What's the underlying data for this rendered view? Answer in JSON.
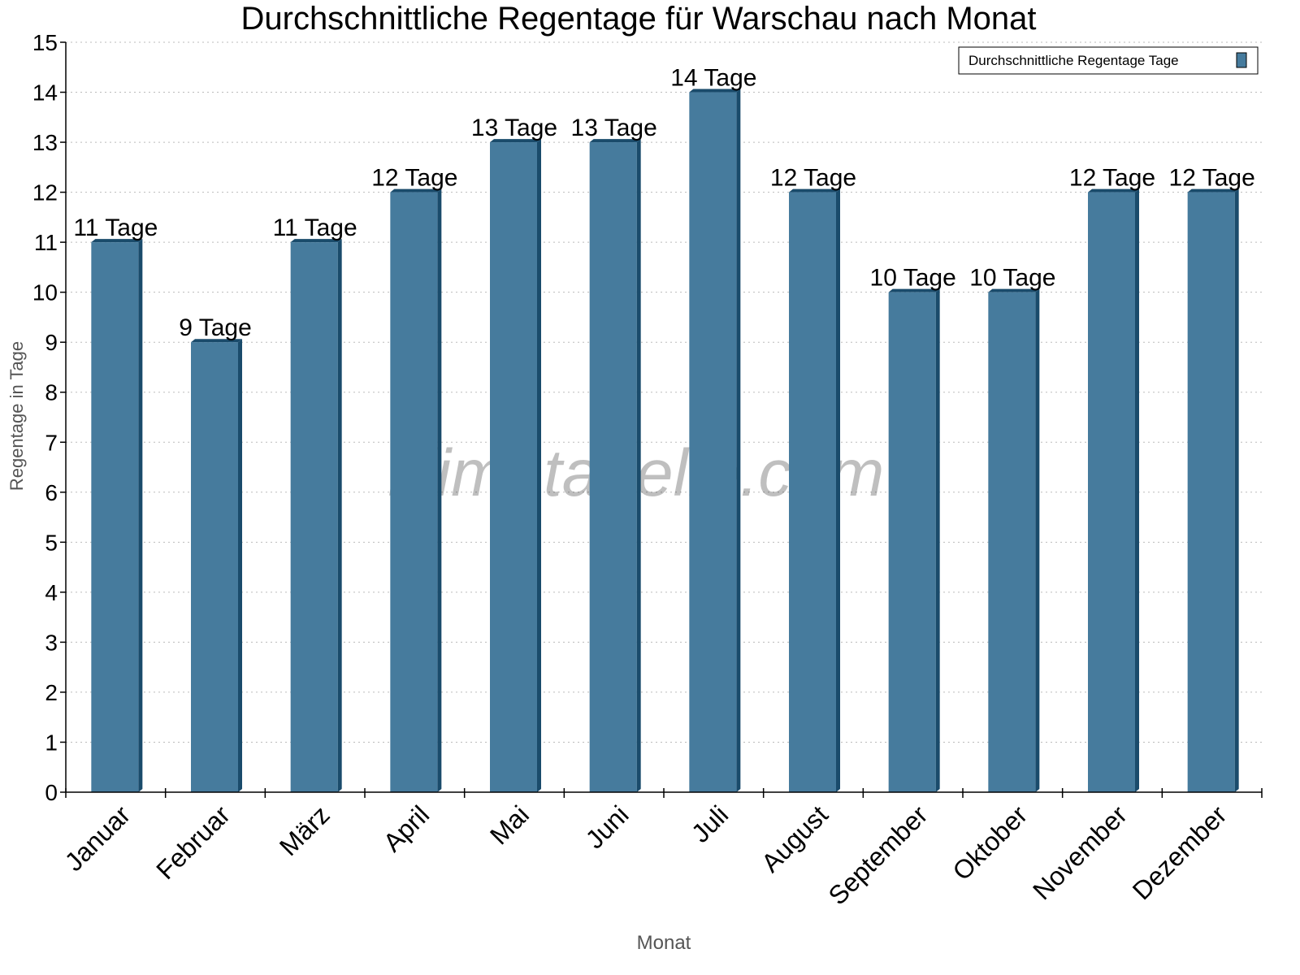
{
  "chart_data": {
    "type": "bar",
    "title": "Durchschnittliche Regentage für Warschau nach Monat",
    "xlabel": "Monat",
    "ylabel": "Regentage in Tage",
    "ylim": [
      0,
      15
    ],
    "yticks": [
      "0",
      "1",
      "2",
      "3",
      "4",
      "5",
      "6",
      "7",
      "8",
      "9",
      "10",
      "11",
      "12",
      "13",
      "14",
      "15"
    ],
    "grid": true,
    "legend_position": "top-right",
    "categories": [
      "Januar",
      "Februar",
      "März",
      "April",
      "Mai",
      "Juni",
      "Juli",
      "August",
      "September",
      "Oktober",
      "November",
      "Dezember"
    ],
    "series": [
      {
        "name": "Durchschnittliche Regentage Tage",
        "values": [
          11,
          9,
          11,
          12,
          13,
          13,
          14,
          12,
          10,
          10,
          12,
          12
        ],
        "labels": [
          "11 Tage",
          "9 Tage",
          "11 Tage",
          "12 Tage",
          "13 Tage",
          "13 Tage",
          "14 Tage",
          "12 Tage",
          "10 Tage",
          "10 Tage",
          "12 Tage",
          "12 Tage"
        ],
        "color": "#467b9d",
        "side_color": "#1a4b6b"
      }
    ],
    "watermark": "klimatabelle.com"
  }
}
